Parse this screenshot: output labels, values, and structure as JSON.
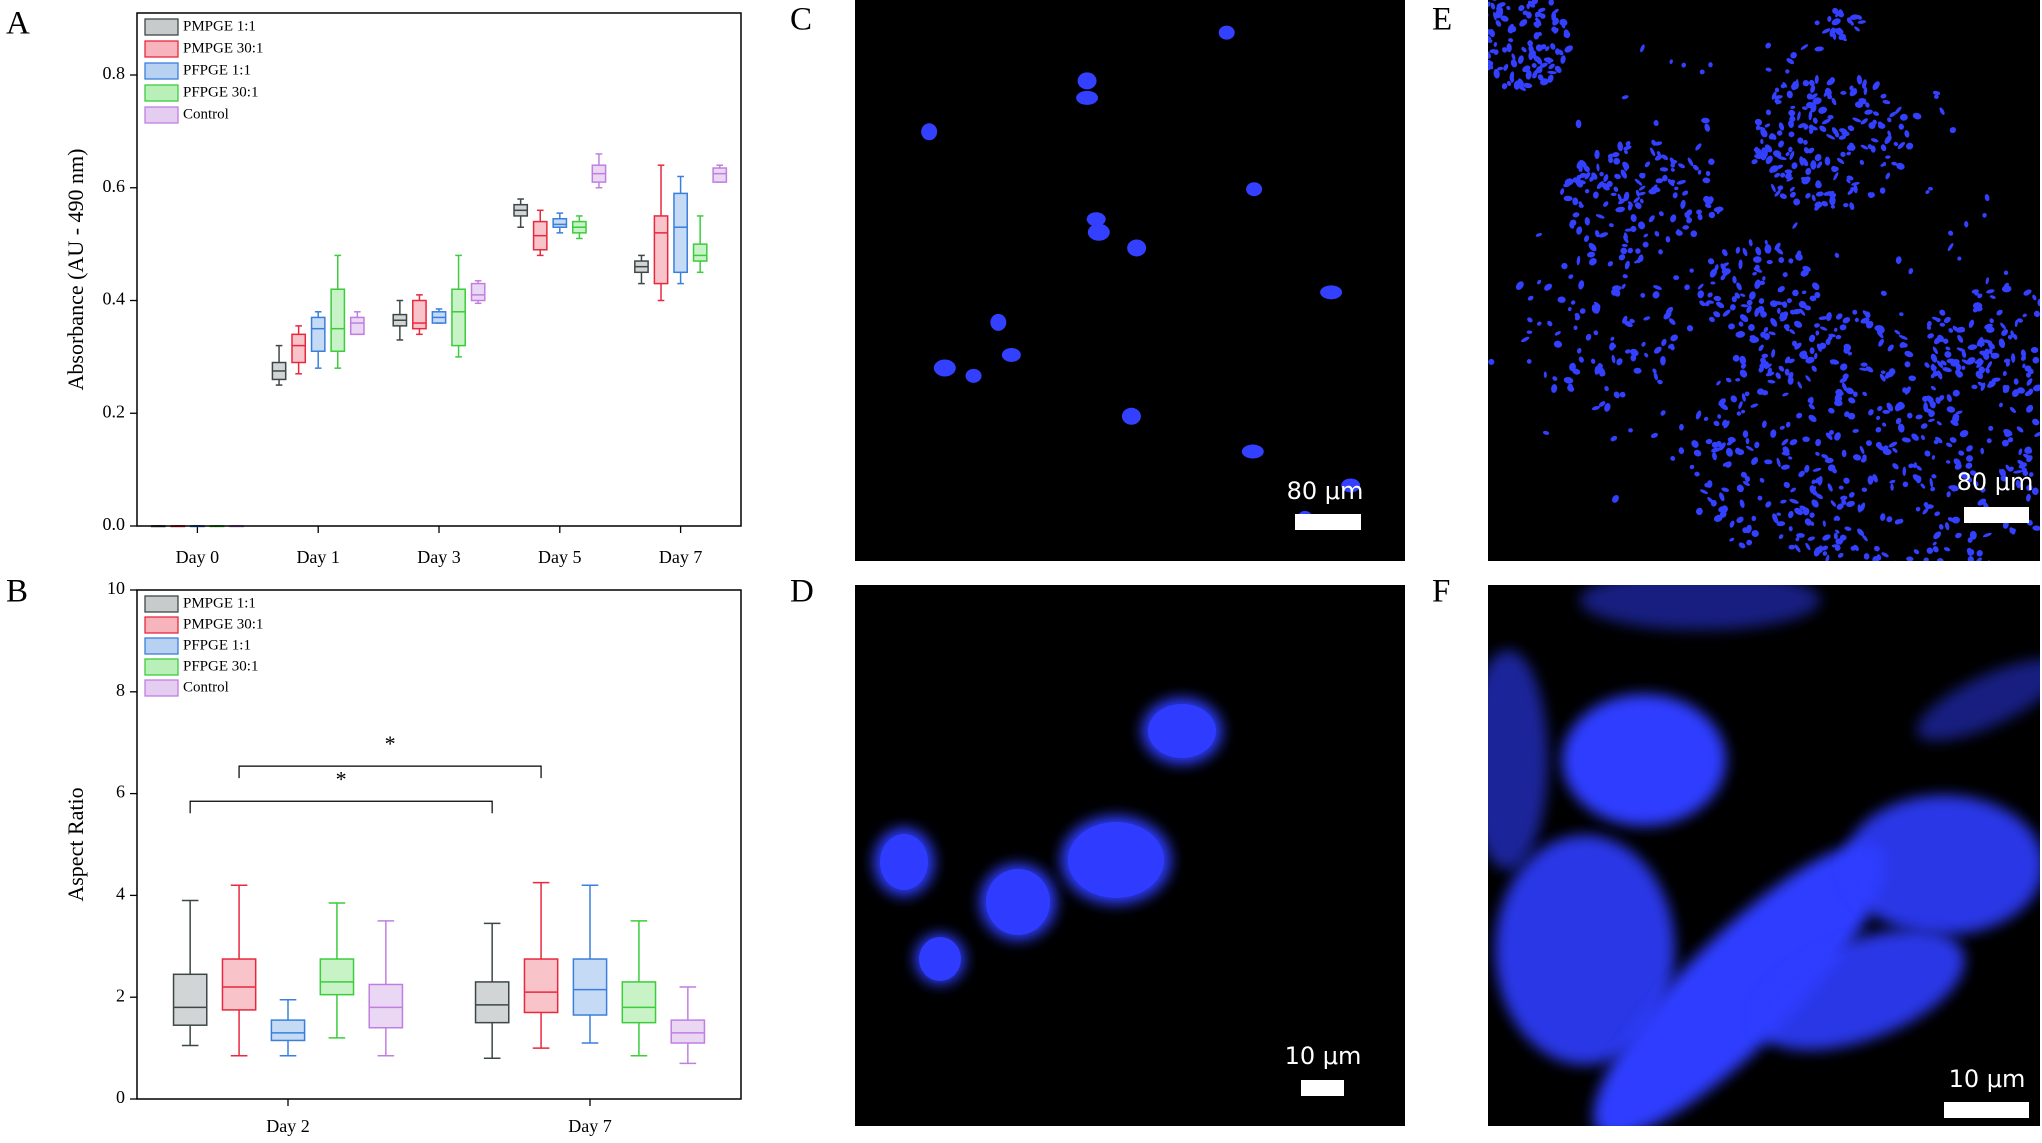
{
  "panel_labels": [
    "A",
    "B",
    "C",
    "D",
    "E",
    "F"
  ],
  "chart_data": [
    {
      "type": "box",
      "ylabel": "Absorbance (AU - 490 nm)",
      "categories": [
        "Day 0",
        "Day 1",
        "Day 3",
        "Day 5",
        "Day 7"
      ],
      "ylim": [
        0,
        0.91
      ],
      "yticks": [
        {
          "value": 0,
          "label": "0.0"
        },
        0.2,
        0.4,
        0.6,
        0.8
      ],
      "legend": "top-left",
      "series": [
        {
          "name": "PMPGE 1:1",
          "color": "#3d4747",
          "fill": "#c7cbcb",
          "values": [
            {
              "min": 0,
              "q1": 0,
              "median": 0,
              "q3": 0,
              "max": 0
            },
            {
              "min": 0.25,
              "q1": 0.26,
              "median": 0.275,
              "q3": 0.29,
              "max": 0.32
            },
            {
              "min": 0.33,
              "q1": 0.355,
              "median": 0.365,
              "q3": 0.375,
              "max": 0.4
            },
            {
              "min": 0.53,
              "q1": 0.55,
              "median": 0.56,
              "q3": 0.57,
              "max": 0.58
            },
            {
              "min": 0.43,
              "q1": 0.45,
              "median": 0.46,
              "q3": 0.47,
              "max": 0.48
            }
          ]
        },
        {
          "name": "PMPGE 30:1",
          "color": "#e8283c",
          "fill": "#f7b4bd",
          "values": [
            {
              "min": 0,
              "q1": 0,
              "median": 0,
              "q3": 0,
              "max": 0
            },
            {
              "min": 0.27,
              "q1": 0.29,
              "median": 0.32,
              "q3": 0.34,
              "max": 0.355
            },
            {
              "min": 0.34,
              "q1": 0.35,
              "median": 0.36,
              "q3": 0.4,
              "max": 0.41
            },
            {
              "min": 0.48,
              "q1": 0.49,
              "median": 0.515,
              "q3": 0.54,
              "max": 0.56
            },
            {
              "min": 0.4,
              "q1": 0.43,
              "median": 0.52,
              "q3": 0.55,
              "max": 0.64
            }
          ]
        },
        {
          "name": "PFPGE 1:1",
          "color": "#3a7fdc",
          "fill": "#b6d1f2",
          "values": [
            {
              "min": 0,
              "q1": 0,
              "median": 0,
              "q3": 0,
              "max": 0
            },
            {
              "min": 0.28,
              "q1": 0.31,
              "median": 0.35,
              "q3": 0.37,
              "max": 0.38
            },
            {
              "min": 0.36,
              "q1": 0.36,
              "median": 0.37,
              "q3": 0.38,
              "max": 0.385
            },
            {
              "min": 0.52,
              "q1": 0.53,
              "median": 0.535,
              "q3": 0.545,
              "max": 0.555
            },
            {
              "min": 0.43,
              "q1": 0.45,
              "median": 0.53,
              "q3": 0.59,
              "max": 0.62
            }
          ]
        },
        {
          "name": "PFPGE 30:1",
          "color": "#3ccc3c",
          "fill": "#b9f0b9",
          "values": [
            {
              "min": 0,
              "q1": 0,
              "median": 0,
              "q3": 0,
              "max": 0
            },
            {
              "min": 0.28,
              "q1": 0.31,
              "median": 0.35,
              "q3": 0.42,
              "max": 0.48
            },
            {
              "min": 0.3,
              "q1": 0.32,
              "median": 0.38,
              "q3": 0.42,
              "max": 0.48
            },
            {
              "min": 0.51,
              "q1": 0.52,
              "median": 0.53,
              "q3": 0.54,
              "max": 0.55
            },
            {
              "min": 0.45,
              "q1": 0.47,
              "median": 0.48,
              "q3": 0.5,
              "max": 0.55
            }
          ]
        },
        {
          "name": "Control",
          "color": "#c07fe0",
          "fill": "#e4cdf1",
          "values": [
            {
              "min": 0,
              "q1": 0,
              "median": 0,
              "q3": 0,
              "max": 0
            },
            {
              "min": 0.34,
              "q1": 0.34,
              "median": 0.36,
              "q3": 0.37,
              "max": 0.38
            },
            {
              "min": 0.395,
              "q1": 0.4,
              "median": 0.41,
              "q3": 0.43,
              "max": 0.435
            },
            {
              "min": 0.6,
              "q1": 0.61,
              "median": 0.625,
              "q3": 0.64,
              "max": 0.66
            },
            {
              "min": 0.61,
              "q1": 0.61,
              "median": 0.625,
              "q3": 0.635,
              "max": 0.64
            }
          ]
        }
      ]
    },
    {
      "type": "box",
      "ylabel": "Aspect Ratio",
      "categories": [
        "Day 2",
        "Day 7"
      ],
      "ylim": [
        0,
        10
      ],
      "yticks": [
        0,
        2,
        4,
        6,
        8,
        10
      ],
      "legend": "top-left",
      "series": [
        {
          "name": "PMPGE 1:1",
          "color": "#3d4747",
          "fill": "#c7cbcb",
          "values": [
            {
              "min": 1.05,
              "q1": 1.45,
              "median": 1.8,
              "q3": 2.45,
              "max": 3.9
            },
            {
              "min": 0.8,
              "q1": 1.5,
              "median": 1.85,
              "q3": 2.3,
              "max": 3.45
            }
          ]
        },
        {
          "name": "PMPGE 30:1",
          "color": "#e8283c",
          "fill": "#f7b4bd",
          "values": [
            {
              "min": 0.85,
              "q1": 1.75,
              "median": 2.2,
              "q3": 2.75,
              "max": 4.2
            },
            {
              "min": 1,
              "q1": 1.7,
              "median": 2.1,
              "q3": 2.75,
              "max": 4.25
            }
          ]
        },
        {
          "name": "PFPGE 1:1",
          "color": "#3a7fdc",
          "fill": "#b6d1f2",
          "values": [
            {
              "min": 0.85,
              "q1": 1.15,
              "median": 1.3,
              "q3": 1.55,
              "max": 1.95
            },
            {
              "min": 1.1,
              "q1": 1.65,
              "median": 2.15,
              "q3": 2.75,
              "max": 4.2
            }
          ]
        },
        {
          "name": "PFPGE 30:1",
          "color": "#3ccc3c",
          "fill": "#b9f0b9",
          "values": [
            {
              "min": 1.2,
              "q1": 2.05,
              "median": 2.3,
              "q3": 2.75,
              "max": 3.85
            },
            {
              "min": 0.85,
              "q1": 1.5,
              "median": 1.8,
              "q3": 2.3,
              "max": 3.5
            }
          ]
        },
        {
          "name": "Control",
          "color": "#c07fe0",
          "fill": "#e4cdf1",
          "values": [
            {
              "min": 0.85,
              "q1": 1.4,
              "median": 1.8,
              "q3": 2.25,
              "max": 3.5
            },
            {
              "min": 0.7,
              "q1": 1.1,
              "median": 1.3,
              "q3": 1.55,
              "max": 2.2
            }
          ]
        }
      ],
      "annotations": [
        {
          "text": "*",
          "y": 6.54,
          "series": "PMPGE 30:1"
        },
        {
          "text": "*",
          "y": 5.85,
          "series": "PMPGE 1:1"
        }
      ]
    }
  ],
  "images": [
    {
      "scale_bar": "80 μm"
    },
    {
      "scale_bar": "10 μm"
    },
    {
      "scale_bar": "80 μm"
    },
    {
      "scale_bar": "10 μm"
    }
  ]
}
